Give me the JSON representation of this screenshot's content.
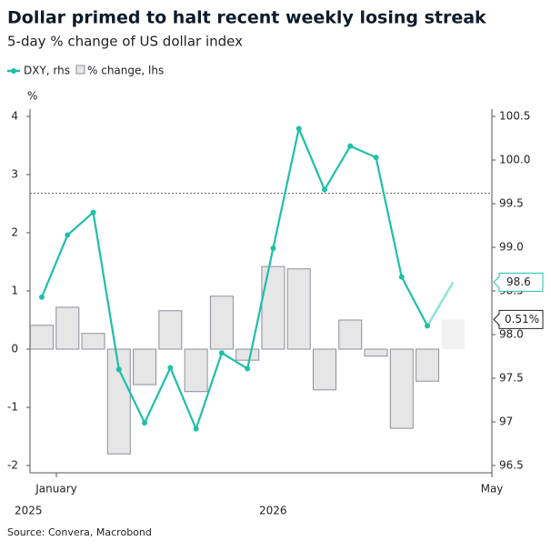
{
  "chart_data": {
    "type": "bar-line",
    "title": "Dollar primed to halt recent weekly losing streak",
    "subtitle": "5-day % change of US dollar index",
    "y_unit": "%",
    "source": "Source: Convera, Macrobond",
    "ylim": [
      -2,
      4
    ],
    "yticks": [
      -2,
      -1,
      0,
      1,
      2,
      3,
      4
    ],
    "y2lim": [
      96.5,
      100.5
    ],
    "y2ticks": [
      96.5,
      97.0,
      {
        "value": 97.5,
        "label": "97.5"
      },
      {
        "value": 98,
        "label": "98.0"
      },
      98.5,
      {
        "value": 99,
        "label": "99.0"
      },
      99.5,
      {
        "value": 100,
        "label": "100.0"
      },
      100.5
    ],
    "x_ticks": [
      "January",
      "May"
    ],
    "years": [
      "2025",
      "2026"
    ],
    "reference_line": {
      "value": 99.62,
      "axis": "y2"
    },
    "series": [
      {
        "name": "% change, lhs",
        "type": "bar",
        "color": "#e6e6e6",
        "values": [
          0.41,
          0.72,
          0.27,
          -1.8,
          -0.61,
          0.66,
          -0.73,
          0.91,
          -0.19,
          1.42,
          1.38,
          -0.7,
          0.5,
          -0.12,
          -1.36,
          -0.55
        ]
      },
      {
        "name": "DXY, rhs",
        "type": "line",
        "axis": "y2",
        "color": "#1fbfa8",
        "values": [
          98.43,
          99.14,
          99.4,
          97.6,
          96.99,
          97.62,
          96.92,
          97.79,
          97.61,
          98.99,
          100.36,
          99.66,
          100.16,
          100.03,
          98.66,
          98.1
        ]
      }
    ],
    "forecast": {
      "pct_change": 0.51,
      "pct_label": "0.51%",
      "dxy": 98.6,
      "dxy_label": "98.6"
    }
  }
}
